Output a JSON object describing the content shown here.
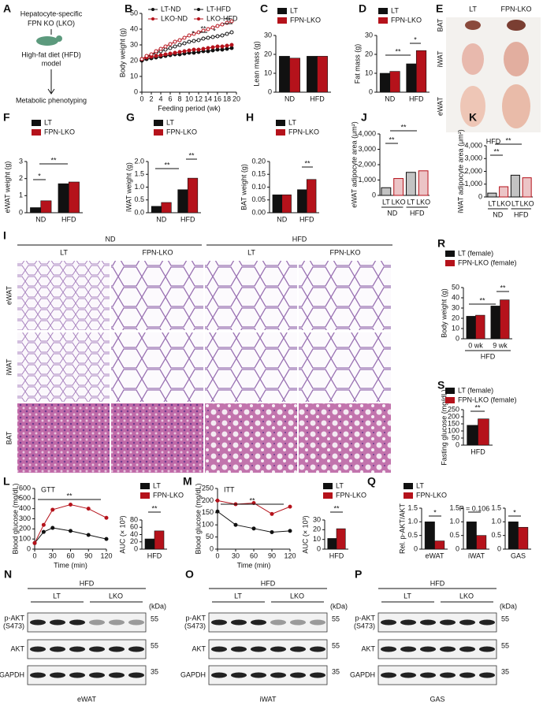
{
  "panel_a": {
    "label": "A",
    "lines": [
      "Hepatocyte-specific",
      "FPN KO (LKO)",
      "High-fat diet (HFD)",
      "model",
      "Metabolic phenotyping"
    ]
  },
  "panel_e": {
    "label": "E",
    "columns": [
      "LT",
      "FPN-LKO"
    ],
    "rows": [
      "BAT",
      "iWAT",
      "eWAT"
    ],
    "caption": "HFD"
  },
  "panel_i": {
    "label": "I",
    "groups": [
      "ND",
      "HFD"
    ],
    "columns": [
      "LT",
      "FPN-LKO",
      "LT",
      "FPN-LKO"
    ],
    "rows": [
      "eWAT",
      "iWAT",
      "BAT"
    ]
  },
  "blots": [
    {
      "label": "N",
      "condition": "HFD",
      "lanes": [
        "LT",
        "LKO"
      ],
      "unit": "(kDa)",
      "rows": [
        {
          "name": [
            "p-AKT",
            "(S473)"
          ],
          "marker": "55"
        },
        {
          "name": [
            "AKT"
          ],
          "marker": "55"
        },
        {
          "name": [
            "GAPDH"
          ],
          "marker": "35"
        }
      ],
      "tissue": "eWAT"
    },
    {
      "label": "O",
      "condition": "HFD",
      "lanes": [
        "LT",
        "LKO"
      ],
      "unit": "(kDa)",
      "rows": [
        {
          "name": [
            "p-AKT",
            "(S473)"
          ],
          "marker": "55"
        },
        {
          "name": [
            "AKT"
          ],
          "marker": "55"
        },
        {
          "name": [
            "GAPDH"
          ],
          "marker": "35"
        }
      ],
      "tissue": "iWAT"
    },
    {
      "label": "P",
      "condition": "HFD",
      "lanes": [
        "LT",
        "LKO"
      ],
      "unit": "(kDa)",
      "rows": [
        {
          "name": [
            "p-AKT",
            "(S473)"
          ],
          "marker": "55"
        },
        {
          "name": [
            "AKT"
          ],
          "marker": "55"
        },
        {
          "name": [
            "GAPDH"
          ],
          "marker": "35"
        }
      ],
      "tissue": "GAS"
    }
  ],
  "chart_data": [
    {
      "label": "B",
      "type": "line",
      "xlabel": "Feeding period (wk)",
      "ylabel": "Body weight (g)",
      "x": [
        0,
        1,
        2,
        3,
        4,
        5,
        6,
        7,
        8,
        9,
        10,
        11,
        12,
        13,
        14,
        15,
        16,
        17,
        18,
        19
      ],
      "xlim": [
        0,
        20
      ],
      "xticks": [
        0,
        2,
        4,
        6,
        8,
        10,
        12,
        14,
        16,
        18,
        20
      ],
      "ylim": [
        0,
        50
      ],
      "yticks": [
        0,
        10,
        20,
        30,
        40,
        50
      ],
      "series": [
        {
          "name": "LT-ND",
          "color": "#111111",
          "values": [
            20,
            21,
            21.5,
            22,
            22.5,
            23,
            23.5,
            24,
            24,
            24.5,
            25,
            25,
            25.5,
            26,
            26,
            26.5,
            27,
            27,
            27.5,
            28
          ]
        },
        {
          "name": "LT-HFD",
          "color": "#111111",
          "values": [
            21,
            22.5,
            23.5,
            25,
            26,
            27,
            28,
            29,
            30,
            31,
            32,
            32.5,
            33,
            34,
            34.5,
            35,
            35.5,
            36,
            37,
            38
          ]
        },
        {
          "name": "LKO-ND",
          "color": "#b5121b",
          "values": [
            21,
            22,
            22.5,
            23,
            23.5,
            24,
            24.5,
            25,
            25.5,
            26,
            26.5,
            27,
            27,
            27.5,
            28,
            28.5,
            29,
            29,
            29.5,
            30
          ]
        },
        {
          "name": "LKO-HFD",
          "color": "#b5121b",
          "values": [
            21,
            23,
            24,
            26,
            27.5,
            29,
            30.5,
            32,
            33,
            34.5,
            36,
            37,
            38,
            39,
            40,
            41,
            42,
            43,
            44,
            45
          ]
        }
      ],
      "annotations": [
        "*",
        "**",
        "*",
        "**"
      ]
    },
    {
      "label": "C",
      "type": "bar",
      "ylabel": "Lean mass (g)",
      "categories": [
        "ND",
        "HFD"
      ],
      "ylim": [
        0,
        30
      ],
      "yticks": [
        0,
        10,
        20,
        30
      ],
      "series": [
        {
          "name": "LT",
          "color": "#111111",
          "values": [
            19,
            19
          ]
        },
        {
          "name": "FPN-LKO",
          "color": "#b5121b",
          "values": [
            18,
            19
          ]
        }
      ],
      "annotations": []
    },
    {
      "label": "D",
      "type": "bar",
      "ylabel": "Fat mass (g)",
      "categories": [
        "ND",
        "HFD"
      ],
      "ylim": [
        0,
        30
      ],
      "yticks": [
        0,
        10,
        20,
        30
      ],
      "series": [
        {
          "name": "LT",
          "color": "#111111",
          "values": [
            10,
            15
          ]
        },
        {
          "name": "FPN-LKO",
          "color": "#b5121b",
          "values": [
            11,
            22
          ]
        }
      ],
      "annotations": [
        "**",
        "*"
      ]
    },
    {
      "label": "F",
      "type": "bar",
      "ylabel": "eWAT weight (g)",
      "categories": [
        "ND",
        "HFD"
      ],
      "ylim": [
        0,
        3
      ],
      "yticks": [
        0,
        1,
        2,
        3
      ],
      "series": [
        {
          "name": "LT",
          "color": "#111111",
          "values": [
            0.3,
            1.7
          ]
        },
        {
          "name": "FPN-LKO",
          "color": "#b5121b",
          "values": [
            0.7,
            1.8
          ]
        }
      ],
      "annotations": [
        "*",
        "**"
      ]
    },
    {
      "label": "G",
      "type": "bar",
      "ylabel": "iWAT weight (g)",
      "categories": [
        "ND",
        "HFD"
      ],
      "ylim": [
        0,
        2
      ],
      "yticks": [
        {
          "value": 0,
          "label": "0.0"
        },
        0.5,
        {
          "value": 1,
          "label": "1.0"
        },
        1.5,
        {
          "value": 2,
          "label": "2.0"
        }
      ],
      "series": [
        {
          "name": "LT",
          "color": "#111111",
          "values": [
            0.25,
            0.9
          ]
        },
        {
          "name": "FPN-LKO",
          "color": "#b5121b",
          "values": [
            0.4,
            1.35
          ]
        }
      ],
      "annotations": [
        "**",
        "**"
      ]
    },
    {
      "label": "H",
      "type": "bar",
      "ylabel": "BAT weight (g)",
      "categories": [
        "ND",
        "HFD"
      ],
      "ylim": [
        0,
        0.2
      ],
      "yticks": [
        {
          "value": 0,
          "label": "0.00"
        },
        0.05,
        {
          "value": 0.1,
          "label": "0.10"
        },
        0.15,
        {
          "value": 0.2,
          "label": "0.20"
        }
      ],
      "series": [
        {
          "name": "LT",
          "color": "#111111",
          "values": [
            0.07,
            0.09
          ]
        },
        {
          "name": "FPN-LKO",
          "color": "#b5121b",
          "values": [
            0.07,
            0.13
          ]
        }
      ],
      "annotations": [
        "**"
      ]
    },
    {
      "label": "J",
      "type": "bar",
      "ylabel": "eWAT adipocyte area (μm²)",
      "categories": [
        "LT",
        "LKO",
        "LT",
        "LKO"
      ],
      "groups": [
        "ND",
        "HFD"
      ],
      "ylim": [
        0,
        4000
      ],
      "yticks": [
        0,
        {
          "value": 1000,
          "label": "1,000"
        },
        {
          "value": 2000,
          "label": "2,000"
        },
        {
          "value": 3000,
          "label": "3,000"
        },
        {
          "value": 4000,
          "label": "4,000"
        }
      ],
      "values": [
        500,
        1100,
        1500,
        1600
      ],
      "colors": [
        "#111111",
        "#b5121b",
        "#111111",
        "#b5121b"
      ],
      "annotations": [
        "**",
        "**"
      ]
    },
    {
      "label": "K",
      "type": "bar",
      "ylabel": "iWAT adipocyte area (μm²)",
      "categories": [
        "LT",
        "LKO",
        "LT",
        "LKO"
      ],
      "groups": [
        "ND",
        "HFD"
      ],
      "ylim": [
        0,
        4000
      ],
      "yticks": [
        0,
        {
          "value": 1000,
          "label": "1,000"
        },
        {
          "value": 2000,
          "label": "2,000"
        },
        {
          "value": 3000,
          "label": "3,000"
        },
        {
          "value": 4000,
          "label": "4,000"
        }
      ],
      "values": [
        300,
        800,
        1700,
        1500
      ],
      "colors": [
        "#111111",
        "#b5121b",
        "#111111",
        "#b5121b"
      ],
      "annotations": [
        "**",
        "**"
      ]
    },
    {
      "label": "R",
      "type": "bar",
      "ylabel": "Body weight (g)",
      "categories": [
        "0 wk",
        "9 wk"
      ],
      "groups": [
        "HFD"
      ],
      "ylim": [
        0,
        50
      ],
      "yticks": [
        0,
        10,
        20,
        30,
        40,
        50
      ],
      "series": [
        {
          "name": "LT (female)",
          "color": "#111111",
          "values": [
            22,
            32
          ]
        },
        {
          "name": "FPN-LKO (female)",
          "color": "#b5121b",
          "values": [
            23,
            38
          ]
        }
      ],
      "annotations": [
        "**",
        "**"
      ]
    },
    {
      "label": "S",
      "type": "bar",
      "ylabel": "Fasting glucose (mg/dL)",
      "categories": [
        "HFD"
      ],
      "ylim": [
        0,
        250
      ],
      "yticks": [
        0,
        50,
        100,
        150,
        200,
        250
      ],
      "series": [
        {
          "name": "LT (female)",
          "color": "#111111",
          "values": [
            140
          ]
        },
        {
          "name": "FPN-LKO (female)",
          "color": "#b5121b",
          "values": [
            185
          ]
        }
      ],
      "annotations": [
        "**"
      ]
    },
    {
      "label": "L",
      "type": "line",
      "title": "GTT",
      "xlabel": "Time (min)",
      "ylabel": "Blood glucose (mg/dL)",
      "x": [
        0,
        15,
        30,
        60,
        90,
        120
      ],
      "xlim": [
        0,
        120
      ],
      "xticks": [
        0,
        30,
        60,
        90,
        120
      ],
      "ylim": [
        0,
        600
      ],
      "yticks": [
        0,
        100,
        200,
        300,
        400,
        500,
        600
      ],
      "series": [
        {
          "name": "LT",
          "color": "#111111",
          "values": [
            60,
            170,
            210,
            180,
            140,
            100
          ]
        },
        {
          "name": "FPN-LKO",
          "color": "#b5121b",
          "values": [
            60,
            240,
            390,
            440,
            400,
            310
          ]
        }
      ],
      "annotations": [
        "**"
      ]
    },
    {
      "type": "bar",
      "ylabel": "AUC (× 10³)",
      "categories": [
        "HFD"
      ],
      "ylim": [
        0,
        80
      ],
      "yticks": [
        0,
        20,
        40,
        60,
        80
      ],
      "series": [
        {
          "name": "LT",
          "color": "#111111",
          "values": [
            28
          ]
        },
        {
          "name": "FPN-LKO",
          "color": "#b5121b",
          "values": [
            50
          ]
        }
      ],
      "annotations": [
        "**"
      ]
    },
    {
      "label": "M",
      "type": "line",
      "title": "ITT",
      "xlabel": "Time (min)",
      "ylabel": "Blood glucose (mg/dL)",
      "x": [
        0,
        30,
        60,
        90,
        120
      ],
      "xlim": [
        0,
        120
      ],
      "xticks": [
        0,
        30,
        60,
        90,
        120
      ],
      "ylim": [
        0,
        250
      ],
      "yticks": [
        0,
        50,
        100,
        150,
        200,
        250
      ],
      "series": [
        {
          "name": "LT",
          "color": "#111111",
          "values": [
            155,
            100,
            85,
            70,
            75
          ]
        },
        {
          "name": "FPN-LKO",
          "color": "#b5121b",
          "values": [
            200,
            185,
            190,
            145,
            175
          ]
        }
      ],
      "annotations": [
        "**"
      ]
    },
    {
      "type": "bar",
      "ylabel": "AUC (× 10³)",
      "categories": [
        "HFD"
      ],
      "ylim": [
        0,
        30
      ],
      "yticks": [
        0,
        10,
        20,
        30
      ],
      "series": [
        {
          "name": "LT",
          "color": "#111111",
          "values": [
            11
          ]
        },
        {
          "name": "FPN-LKO",
          "color": "#b5121b",
          "values": [
            21
          ]
        }
      ],
      "annotations": [
        "**"
      ]
    },
    {
      "label": "Q",
      "type": "bar",
      "split": true,
      "ylabel": "Rel. p-AKT/AKT",
      "categories": [
        "eWAT",
        "iWAT",
        "GAS"
      ],
      "ylim": [
        0,
        1.5
      ],
      "yticks": [
        0,
        0.5,
        {
          "value": 1,
          "label": "1.0"
        },
        1.5
      ],
      "series": [
        {
          "name": "LT",
          "color": "#111111",
          "values": [
            1.0,
            1.0,
            1.0
          ]
        },
        {
          "name": "FPN-LKO",
          "color": "#b5121b",
          "values": [
            0.3,
            0.5,
            0.8
          ]
        }
      ],
      "annotations": [
        "*",
        "P = 0.106",
        "*"
      ]
    }
  ]
}
